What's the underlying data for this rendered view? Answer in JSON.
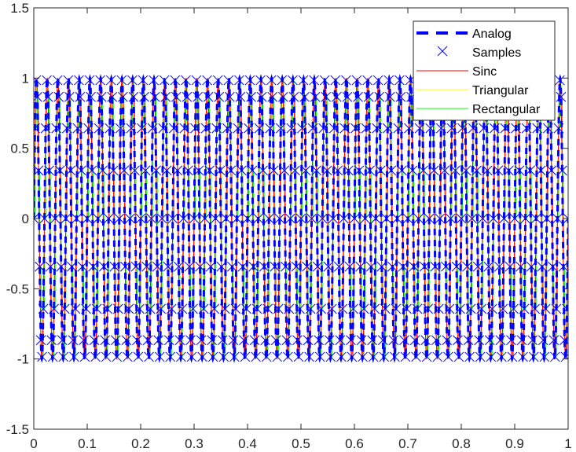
{
  "chart_data": {
    "type": "line",
    "title": "",
    "xlabel": "",
    "ylabel": "",
    "xlim": [
      0,
      1
    ],
    "ylim": [
      -1.5,
      1.5
    ],
    "x_ticks": [
      0,
      0.1,
      0.2,
      0.3,
      0.4,
      0.5,
      0.6,
      0.7,
      0.8,
      0.9,
      1
    ],
    "x_tick_labels": [
      "0",
      "0.1",
      "0.2",
      "0.3",
      "0.4",
      "0.5",
      "0.6",
      "0.7",
      "0.8",
      "0.9",
      "1"
    ],
    "y_ticks": [
      -1.5,
      -1,
      -0.5,
      0,
      0.5,
      1,
      1.5
    ],
    "y_tick_labels": [
      "-1.5",
      "-1",
      "-0.5",
      "0",
      "0.5",
      "1",
      "1.5"
    ],
    "grid": false,
    "legend_position": "top-right",
    "signal": {
      "function": "sin",
      "frequency_hz": 50,
      "amplitude": 1,
      "sample_rate_hz": 450
    },
    "series": [
      {
        "name": "Analog",
        "style": "dashed-line",
        "color": "#0000ff"
      },
      {
        "name": "Samples",
        "style": "x-markers",
        "color": "#0000ff"
      },
      {
        "name": "Sinc",
        "style": "line",
        "color": "#ff0000"
      },
      {
        "name": "Triangular",
        "style": "line",
        "color": "#ffff00"
      },
      {
        "name": "Rectangular",
        "style": "line",
        "color": "#00ff00"
      }
    ]
  }
}
